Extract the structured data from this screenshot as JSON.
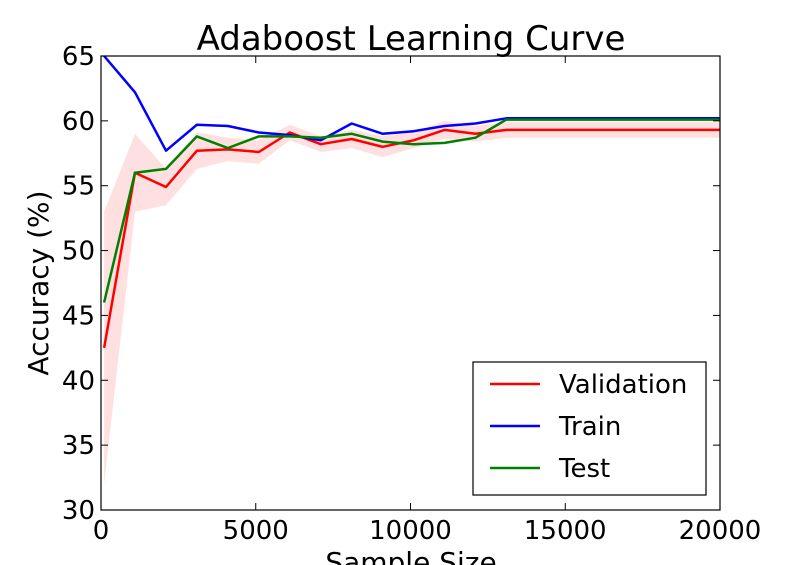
{
  "chart_data": {
    "type": "line",
    "title": "Adaboost Learning Curve",
    "xlabel": "Sample Size",
    "ylabel": "Accuracy (%)",
    "xlim": [
      0,
      20000
    ],
    "ylim": [
      30,
      65
    ],
    "xticks": [
      0,
      5000,
      10000,
      15000,
      20000
    ],
    "yticks": [
      30,
      35,
      40,
      45,
      50,
      55,
      60,
      65
    ],
    "grid": false,
    "legend_position": "lower-right",
    "series": [
      {
        "name": "Validation",
        "color": "#ff0000",
        "x": [
          100,
          1100,
          2100,
          3100,
          4100,
          5100,
          6100,
          7100,
          8100,
          9100,
          10100,
          11100,
          12100,
          13100,
          14100,
          15100,
          16100,
          17100,
          18100,
          19100,
          20000
        ],
        "y": [
          42.5,
          56.0,
          54.9,
          57.7,
          57.8,
          57.6,
          59.1,
          58.2,
          58.6,
          58.0,
          58.5,
          59.3,
          59.0,
          59.3,
          59.3,
          59.3,
          59.3,
          59.3,
          59.3,
          59.3,
          59.3
        ],
        "band_lower": [
          32.0,
          53.0,
          53.5,
          56.3,
          56.9,
          56.7,
          58.5,
          57.6,
          57.9,
          57.2,
          57.9,
          58.6,
          58.4,
          58.7,
          58.7,
          58.7,
          58.7,
          58.7,
          58.7,
          58.7,
          58.7
        ],
        "band_upper": [
          53.0,
          59.0,
          56.3,
          59.1,
          58.7,
          58.5,
          59.7,
          58.8,
          59.3,
          58.8,
          59.1,
          60.0,
          59.6,
          59.9,
          59.9,
          59.9,
          59.9,
          59.9,
          59.9,
          59.9,
          59.9
        ]
      },
      {
        "name": "Train",
        "color": "#0000ff",
        "x": [
          100,
          1100,
          2100,
          3100,
          4100,
          5100,
          6100,
          7100,
          8100,
          9100,
          10100,
          11100,
          12100,
          13100,
          14100,
          15100,
          16100,
          17100,
          18100,
          19100,
          20000
        ],
        "y": [
          65.0,
          62.2,
          57.7,
          59.7,
          59.6,
          59.1,
          58.9,
          58.5,
          59.8,
          59.0,
          59.2,
          59.6,
          59.8,
          60.2,
          60.2,
          60.2,
          60.2,
          60.2,
          60.2,
          60.2,
          60.2
        ]
      },
      {
        "name": "Test",
        "color": "#008000",
        "x": [
          100,
          1100,
          2100,
          3100,
          4100,
          5100,
          6100,
          7100,
          8100,
          9100,
          10100,
          11100,
          12100,
          13100,
          14100,
          15100,
          16100,
          17100,
          18100,
          19100,
          20000
        ],
        "y": [
          46.0,
          56.0,
          56.3,
          58.8,
          57.9,
          58.8,
          58.8,
          58.7,
          59.0,
          58.4,
          58.2,
          58.3,
          58.7,
          60.1,
          60.1,
          60.1,
          60.1,
          60.1,
          60.1,
          60.1,
          60.1
        ]
      }
    ]
  }
}
